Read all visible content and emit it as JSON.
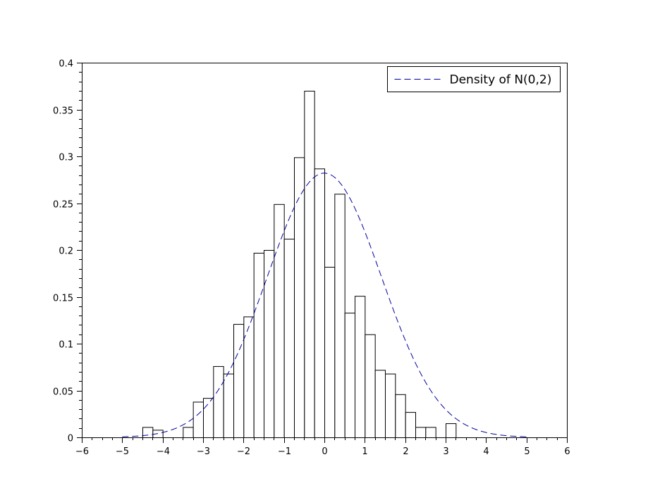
{
  "chart_data": {
    "type": "bar",
    "subtype": "histogram-with-density-curve",
    "title": "",
    "xlabel": "",
    "ylabel": "",
    "xlim": [
      -6,
      6
    ],
    "ylim": [
      0,
      0.4
    ],
    "grid": false,
    "legend_position": "top-right",
    "x_ticks": [
      "−6",
      "−5",
      "−4",
      "−3",
      "−2",
      "−1",
      "0",
      "1",
      "2",
      "3",
      "4",
      "5",
      "6"
    ],
    "y_ticks": [
      "0",
      "0.05",
      "0.1",
      "0.15",
      "0.2",
      "0.25",
      "0.3",
      "0.35",
      "0.4"
    ],
    "histogram": {
      "bin_width": 0.25,
      "bins": [
        {
          "x0": -4.5,
          "x1": -4.25,
          "value": 0.011
        },
        {
          "x0": -4.25,
          "x1": -4.0,
          "value": 0.008
        },
        {
          "x0": -3.5,
          "x1": -3.25,
          "value": 0.011
        },
        {
          "x0": -3.25,
          "x1": -3.0,
          "value": 0.038
        },
        {
          "x0": -3.0,
          "x1": -2.75,
          "value": 0.042
        },
        {
          "x0": -2.75,
          "x1": -2.5,
          "value": 0.076
        },
        {
          "x0": -2.5,
          "x1": -2.25,
          "value": 0.068
        },
        {
          "x0": -2.25,
          "x1": -2.0,
          "value": 0.121
        },
        {
          "x0": -2.0,
          "x1": -1.75,
          "value": 0.129
        },
        {
          "x0": -1.75,
          "x1": -1.5,
          "value": 0.197
        },
        {
          "x0": -1.5,
          "x1": -1.25,
          "value": 0.2
        },
        {
          "x0": -1.25,
          "x1": -1.0,
          "value": 0.249
        },
        {
          "x0": -1.0,
          "x1": -0.75,
          "value": 0.212
        },
        {
          "x0": -0.75,
          "x1": -0.5,
          "value": 0.299
        },
        {
          "x0": -0.5,
          "x1": -0.25,
          "value": 0.37
        },
        {
          "x0": -0.25,
          "x1": 0.0,
          "value": 0.287
        },
        {
          "x0": 0.0,
          "x1": 0.25,
          "value": 0.182
        },
        {
          "x0": 0.25,
          "x1": 0.5,
          "value": 0.26
        },
        {
          "x0": 0.5,
          "x1": 0.75,
          "value": 0.133
        },
        {
          "x0": 0.75,
          "x1": 1.0,
          "value": 0.151
        },
        {
          "x0": 1.0,
          "x1": 1.25,
          "value": 0.11
        },
        {
          "x0": 1.25,
          "x1": 1.5,
          "value": 0.072
        },
        {
          "x0": 1.5,
          "x1": 1.75,
          "value": 0.068
        },
        {
          "x0": 1.75,
          "x1": 2.0,
          "value": 0.046
        },
        {
          "x0": 2.0,
          "x1": 2.25,
          "value": 0.027
        },
        {
          "x0": 2.25,
          "x1": 2.5,
          "value": 0.011
        },
        {
          "x0": 2.5,
          "x1": 2.75,
          "value": 0.011
        },
        {
          "x0": 3.0,
          "x1": 3.25,
          "value": 0.015
        }
      ]
    },
    "series": [
      {
        "name": "Density of N(0,2)",
        "type": "line",
        "style": "dashed",
        "color": "#0000a0",
        "x_range": [
          -5,
          5
        ],
        "mean": 0,
        "std": 1.4142
      }
    ],
    "colors": {
      "bar_fill": "#ffffff",
      "bar_stroke": "#000000",
      "axis": "#000000",
      "density_line": "#0000a0"
    }
  }
}
